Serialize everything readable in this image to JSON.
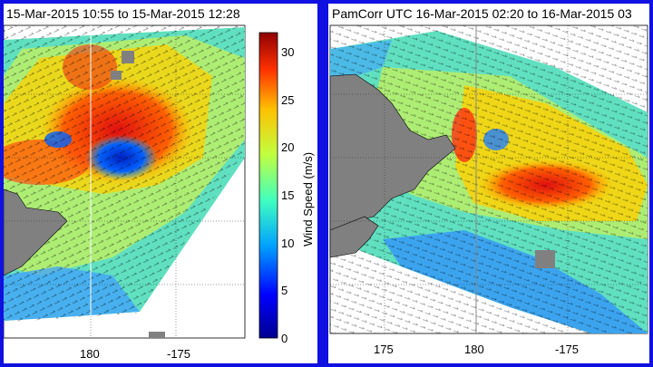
{
  "panels": [
    {
      "title": "15-Mar-2015 10:55 to 15-Mar-2015 12:28",
      "x_ticks": [
        "180",
        "-175"
      ],
      "colorbar": {
        "label": "Wind Speed (m/s)",
        "ticks": [
          "0",
          "5",
          "10",
          "15",
          "20",
          "25",
          "30"
        ],
        "range": [
          0,
          32
        ]
      }
    },
    {
      "title": "PamCorr UTC 16-Mar-2015 02:20 to 16-Mar-2015 03",
      "x_ticks": [
        "175",
        "180",
        "-175"
      ]
    }
  ],
  "colormap": [
    "#00008f",
    "#0040ff",
    "#00c0ff",
    "#40ffc0",
    "#c0ff40",
    "#ffc000",
    "#ff4000",
    "#8f0000"
  ],
  "land_color": "#808080"
}
